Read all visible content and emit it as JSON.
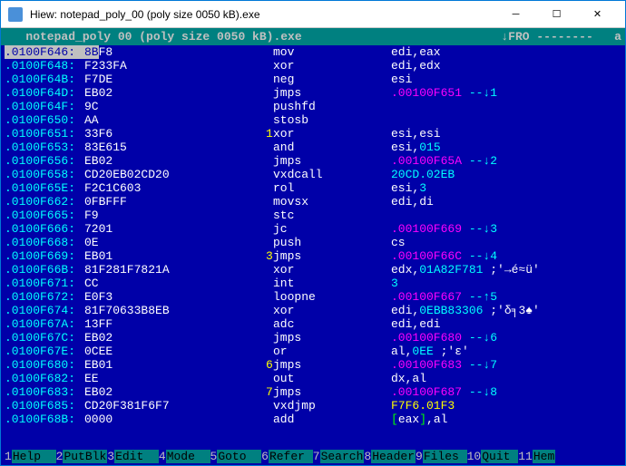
{
  "title": "Hiew: notepad_poly_00 (poly size 0050 kB).exe",
  "header": {
    "filename": "   notepad_poly 00 (poly size 0050 kB).exe",
    "mode": "↓FRO --------",
    "tail": "   a"
  },
  "rows": [
    {
      "addr": ".0100F646:",
      "sel": true,
      "hex": "8BF8",
      "hexsel": "8B",
      "lbl": "",
      "mnem": "mov",
      "ops": [
        {
          "c": "wh",
          "t": "edi,eax"
        }
      ]
    },
    {
      "addr": ".0100F648:",
      "hex": "F233FA",
      "lbl": "",
      "mnem": "xor",
      "ops": [
        {
          "c": "wh",
          "t": "edi,edx"
        }
      ]
    },
    {
      "addr": ".0100F64B:",
      "hex": "F7DE",
      "lbl": "",
      "mnem": "neg",
      "ops": [
        {
          "c": "wh",
          "t": "esi"
        }
      ]
    },
    {
      "addr": ".0100F64D:",
      "hex": "EB02",
      "lbl": "",
      "mnem": "jmps",
      "ops": [
        {
          "c": "mg",
          "t": ".00100F651"
        },
        {
          "c": "lc",
          "t": " --↓1"
        }
      ]
    },
    {
      "addr": ".0100F64F:",
      "hex": "9C",
      "lbl": "",
      "mnem": "pushfd",
      "ops": []
    },
    {
      "addr": ".0100F650:",
      "hex": "AA",
      "lbl": "",
      "mnem": "stosb",
      "ops": []
    },
    {
      "addr": ".0100F651:",
      "hex": "33F6",
      "lbl": "1",
      "mnem": "xor",
      "ops": [
        {
          "c": "wh",
          "t": "esi,esi"
        }
      ]
    },
    {
      "addr": ".0100F653:",
      "hex": "83E615",
      "lbl": "",
      "mnem": "and",
      "ops": [
        {
          "c": "wh",
          "t": "esi,"
        },
        {
          "c": "cy",
          "t": "015"
        }
      ]
    },
    {
      "addr": ".0100F656:",
      "hex": "EB02",
      "lbl": "",
      "mnem": "jmps",
      "ops": [
        {
          "c": "mg",
          "t": ".00100F65A"
        },
        {
          "c": "lc",
          "t": " --↓2"
        }
      ]
    },
    {
      "addr": ".0100F658:",
      "hex": "CD20EB02CD20",
      "lbl": "",
      "mnem": "vxdcall",
      "ops": [
        {
          "c": "cy",
          "t": "20CD.02EB"
        }
      ]
    },
    {
      "addr": ".0100F65E:",
      "hex": "F2C1C603",
      "lbl": "",
      "mnem": "rol",
      "ops": [
        {
          "c": "wh",
          "t": "esi,"
        },
        {
          "c": "cy",
          "t": "3"
        }
      ]
    },
    {
      "addr": ".0100F662:",
      "hex": "0FBFFF",
      "lbl": "",
      "mnem": "movsx",
      "ops": [
        {
          "c": "wh",
          "t": "edi,di"
        }
      ]
    },
    {
      "addr": ".0100F665:",
      "hex": "F9",
      "lbl": "",
      "mnem": "stc",
      "ops": []
    },
    {
      "addr": ".0100F666:",
      "hex": "7201",
      "lbl": "",
      "mnem": "jc",
      "ops": [
        {
          "c": "mg",
          "t": ".00100F669"
        },
        {
          "c": "lc",
          "t": " --↓3"
        }
      ]
    },
    {
      "addr": ".0100F668:",
      "hex": "0E",
      "lbl": "",
      "mnem": "push",
      "ops": [
        {
          "c": "wh",
          "t": "cs"
        }
      ]
    },
    {
      "addr": ".0100F669:",
      "hex": "EB01",
      "lbl": "3",
      "mnem": "jmps",
      "ops": [
        {
          "c": "mg",
          "t": ".00100F66C"
        },
        {
          "c": "lc",
          "t": " --↓4"
        }
      ]
    },
    {
      "addr": ".0100F66B:",
      "hex": "81F281F7821A",
      "lbl": "",
      "mnem": "xor",
      "ops": [
        {
          "c": "wh",
          "t": "edx,"
        },
        {
          "c": "cy",
          "t": "01A82F781"
        },
        {
          "c": "wh",
          "t": " ;'→é≈ü'"
        }
      ]
    },
    {
      "addr": ".0100F671:",
      "hex": "CC",
      "lbl": "",
      "mnem": "int",
      "ops": [
        {
          "c": "cy",
          "t": "3"
        }
      ]
    },
    {
      "addr": ".0100F672:",
      "hex": "E0F3",
      "lbl": "",
      "mnem": "loopne",
      "ops": [
        {
          "c": "mg",
          "t": ".00100F667"
        },
        {
          "c": "lc",
          "t": " --↑5"
        }
      ]
    },
    {
      "addr": ".0100F674:",
      "hex": "81F70633B8EB",
      "lbl": "",
      "mnem": "xor",
      "ops": [
        {
          "c": "wh",
          "t": "edi,"
        },
        {
          "c": "cy",
          "t": "0EBB83306"
        },
        {
          "c": "wh",
          "t": " ;'δ╕3♠'"
        }
      ]
    },
    {
      "addr": ".0100F67A:",
      "hex": "13FF",
      "lbl": "",
      "mnem": "adc",
      "ops": [
        {
          "c": "wh",
          "t": "edi,edi"
        }
      ]
    },
    {
      "addr": ".0100F67C:",
      "hex": "EB02",
      "lbl": "",
      "mnem": "jmps",
      "ops": [
        {
          "c": "mg",
          "t": ".00100F680"
        },
        {
          "c": "lc",
          "t": " --↓6"
        }
      ]
    },
    {
      "addr": ".0100F67E:",
      "hex": "0CEE",
      "lbl": "",
      "mnem": "or",
      "ops": [
        {
          "c": "wh",
          "t": "al,"
        },
        {
          "c": "cy",
          "t": "0EE"
        },
        {
          "c": "wh",
          "t": " ;'ε'"
        }
      ]
    },
    {
      "addr": ".0100F680:",
      "hex": "EB01",
      "lbl": "6",
      "mnem": "jmps",
      "ops": [
        {
          "c": "mg",
          "t": ".00100F683"
        },
        {
          "c": "lc",
          "t": " --↓7"
        }
      ]
    },
    {
      "addr": ".0100F682:",
      "hex": "EE",
      "lbl": "",
      "mnem": "out",
      "ops": [
        {
          "c": "wh",
          "t": "dx,al"
        }
      ]
    },
    {
      "addr": ".0100F683:",
      "hex": "EB02",
      "lbl": "7",
      "mnem": "jmps",
      "ops": [
        {
          "c": "mg",
          "t": ".00100F687"
        },
        {
          "c": "lc",
          "t": " --↓8"
        }
      ]
    },
    {
      "addr": ".0100F685:",
      "hex": "CD20F381F6F7",
      "lbl": "",
      "mnem": "vxdjmp",
      "ops": [
        {
          "c": "ye",
          "t": "F7F6.01F3"
        }
      ]
    },
    {
      "addr": ".0100F68B:",
      "hex": "0000",
      "lbl": "",
      "mnem": "add",
      "ops": [
        {
          "c": "gr",
          "t": "["
        },
        {
          "c": "wh",
          "t": "eax"
        },
        {
          "c": "gr",
          "t": "]"
        },
        {
          "c": "wh",
          "t": ",al"
        }
      ]
    }
  ],
  "fkeys": [
    {
      "n": "1",
      "t": "Help  "
    },
    {
      "n": "2",
      "t": "PutBlk"
    },
    {
      "n": "3",
      "t": "Edit  "
    },
    {
      "n": "4",
      "t": "Mode  "
    },
    {
      "n": "5",
      "t": "Goto  "
    },
    {
      "n": "6",
      "t": "Refer "
    },
    {
      "n": "7",
      "t": "Search"
    },
    {
      "n": "8",
      "t": "Header"
    },
    {
      "n": "9",
      "t": "Files "
    },
    {
      "n": "10",
      "t": "Quit "
    },
    {
      "n": "11",
      "t": "Hem"
    }
  ]
}
